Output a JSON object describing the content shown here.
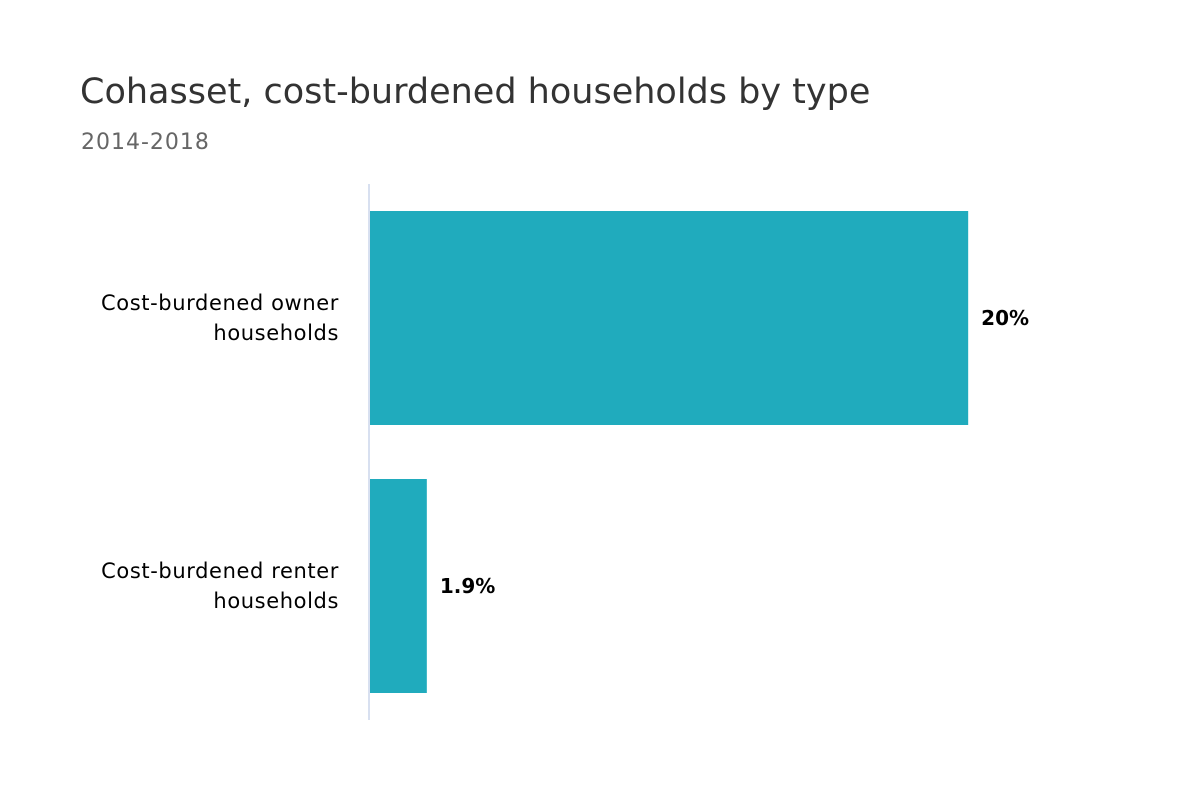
{
  "chart_data": {
    "type": "bar",
    "orientation": "horizontal",
    "title": "Cohasset, cost-burdened households by type",
    "subtitle": "2014-2018",
    "categories": [
      [
        "Cost-burdened owner",
        "households"
      ],
      [
        "Cost-burdened renter",
        "households"
      ]
    ],
    "values": [
      20,
      1.9
    ],
    "value_labels": [
      "20%",
      "1.9%"
    ],
    "unit": "%",
    "xlim": [
      0,
      22
    ],
    "grid": false,
    "legend": "none",
    "bar_color": "#20abbd",
    "axis_color": "#ccd6eb"
  }
}
